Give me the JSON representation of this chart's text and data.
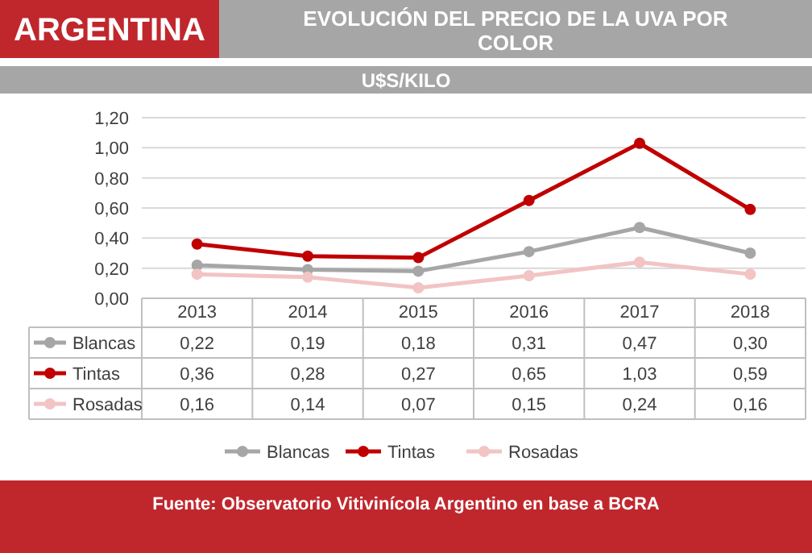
{
  "chart_data": {
    "type": "line",
    "title": "EVOLUCIÓN DEL PRECIO DE LA UVA POR COLOR",
    "subtitle": "U$S/KILO",
    "annotations": [
      "ARGENTINA",
      "Fuente: Observatorio Vitivinícola Argentino en base a BCRA"
    ],
    "categories": [
      "2013",
      "2014",
      "2015",
      "2016",
      "2017",
      "2018"
    ],
    "series": [
      {
        "name": "Blancas",
        "color": "#a6a6a6",
        "values": [
          0.22,
          0.19,
          0.18,
          0.31,
          0.47,
          0.3
        ],
        "value_labels": [
          "0,22",
          "0,19",
          "0,18",
          "0,31",
          "0,47",
          "0,30"
        ]
      },
      {
        "name": "Tintas",
        "color": "#c00000",
        "values": [
          0.36,
          0.28,
          0.27,
          0.65,
          1.03,
          0.59
        ],
        "value_labels": [
          "0,36",
          "0,28",
          "0,27",
          "0,65",
          "1,03",
          "0,59"
        ]
      },
      {
        "name": "Rosadas",
        "color": "#f2c4c4",
        "values": [
          0.16,
          0.14,
          0.07,
          0.15,
          0.24,
          0.16
        ],
        "value_labels": [
          "0,16",
          "0,14",
          "0,07",
          "0,15",
          "0,24",
          "0,16"
        ]
      }
    ],
    "ylim": [
      0,
      1.2
    ],
    "yticks": [
      {
        "value": 0,
        "label": "0,00"
      },
      {
        "value": 0.2,
        "label": "0,20"
      },
      {
        "value": 0.4,
        "label": "0,40"
      },
      {
        "value": 0.6,
        "label": "0,60"
      },
      {
        "value": 0.8,
        "label": "0,80"
      },
      {
        "value": 1,
        "label": "1,00"
      },
      {
        "value": 1.2,
        "label": "1,20"
      }
    ],
    "grid": "y",
    "legend": "bottom",
    "marker": "circle",
    "line_style": "solid"
  }
}
